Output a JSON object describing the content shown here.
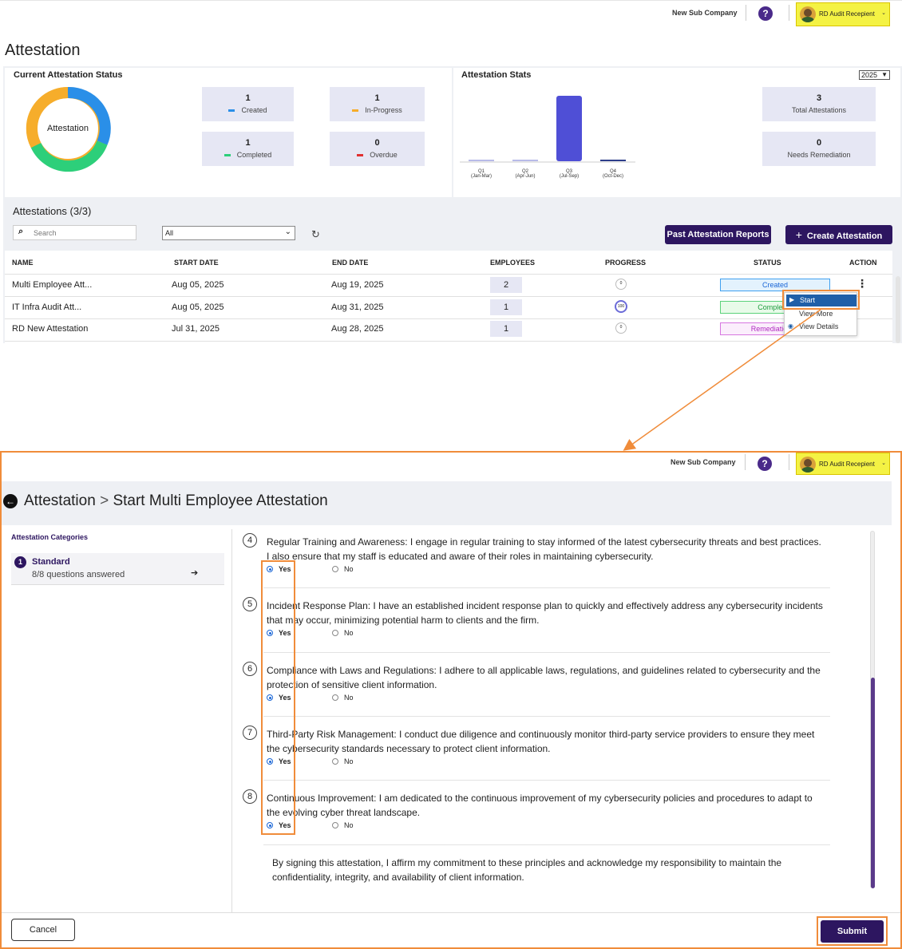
{
  "header": {
    "company": "New Sub Company",
    "help": "?",
    "user": "RD Audit Recepient"
  },
  "page_title": "Attestation",
  "status_panel": {
    "title": "Current Attestation Status",
    "donut_label": "Attestation",
    "stats": [
      {
        "value": "1",
        "label": "Created",
        "color": "#2a8fe8"
      },
      {
        "value": "1",
        "label": "In-Progress",
        "color": "#f6ad2b"
      },
      {
        "value": "1",
        "label": "Completed",
        "color": "#2dcf7a"
      },
      {
        "value": "0",
        "label": "Overdue",
        "color": "#e03030"
      }
    ]
  },
  "stats_panel": {
    "title": "Attestation Stats",
    "year": "2025",
    "quarters": [
      {
        "q": "Q1",
        "range": "(Jan-Mar)",
        "value": 0
      },
      {
        "q": "Q2",
        "range": "(Apr-Jun)",
        "value": 0
      },
      {
        "q": "Q3",
        "range": "(Jul-Sep)",
        "value": 3
      },
      {
        "q": "Q4",
        "range": "(Oct-Dec)",
        "value": 0
      }
    ],
    "total": {
      "value": "3",
      "label": "Total Attestations"
    },
    "remediation": {
      "value": "0",
      "label": "Needs Remediation"
    }
  },
  "list": {
    "title": "Attestations (3/3)",
    "search_placeholder": "Search",
    "filter": "All",
    "past_reports": "Past Attestation Reports",
    "create": "Create Attestation",
    "columns": [
      "NAME",
      "START DATE",
      "END DATE",
      "EMPLOYEES",
      "PROGRESS",
      "STATUS",
      "ACTION"
    ],
    "rows": [
      {
        "name": "Multi Employee Att...",
        "start": "Aug 05, 2025",
        "end": "Aug 19, 2025",
        "employees": "2",
        "progress": "0",
        "status": "Created"
      },
      {
        "name": "IT Infra Audit Att...",
        "start": "Aug 05, 2025",
        "end": "Aug 31, 2025",
        "employees": "1",
        "progress": "100",
        "status": "Completed"
      },
      {
        "name": "RD New Attestation",
        "start": "Jul 31, 2025",
        "end": "Aug 28, 2025",
        "employees": "1",
        "progress": "0",
        "status": "Remediation In"
      }
    ],
    "menu": {
      "start": "Start",
      "view_more": "View More",
      "view_details": "View Details"
    }
  },
  "detail": {
    "breadcrumb_root": "Attestation",
    "breadcrumb_sep": ">",
    "breadcrumb_page": "Start Multi Employee Attestation",
    "categories_title": "Attestation Categories",
    "category": {
      "num": "1",
      "name": "Standard",
      "sub": "8/8 questions answered"
    },
    "questions": [
      {
        "num": "4",
        "text": "Regular Training and Awareness: I engage in regular training to stay informed of the latest cybersecurity threats and best practices. I also ensure that my staff is educated and aware of their roles in maintaining cybersecurity.",
        "yes": "Yes",
        "no": "No"
      },
      {
        "num": "5",
        "text": "Incident Response Plan: I have an established incident response plan to quickly and effectively address any cybersecurity incidents that may occur, minimizing potential harm to clients and the firm.",
        "yes": "Yes",
        "no": "No"
      },
      {
        "num": "6",
        "text": "Compliance with Laws and Regulations: I adhere to all applicable laws, regulations, and guidelines related to cybersecurity and the protection of sensitive client information.",
        "yes": "Yes",
        "no": "No"
      },
      {
        "num": "7",
        "text": "Third-Party Risk Management: I conduct due diligence and continuously monitor third-party service providers to ensure they meet the cybersecurity standards necessary to protect client information.",
        "yes": "Yes",
        "no": "No"
      },
      {
        "num": "8",
        "text": "Continuous Improvement: I am dedicated to the continuous improvement of my cybersecurity policies and procedures to adapt to the evolving cyber threat landscape.",
        "yes": "Yes",
        "no": "No"
      }
    ],
    "affirmation": "By signing this attestation, I affirm my commitment to these principles and acknowledge my responsibility to maintain the confidentiality, integrity, and availability of client information.",
    "cancel": "Cancel",
    "submit": "Submit"
  },
  "colors": {
    "brand": "#2d1660",
    "annotation": "#f08c3a"
  }
}
